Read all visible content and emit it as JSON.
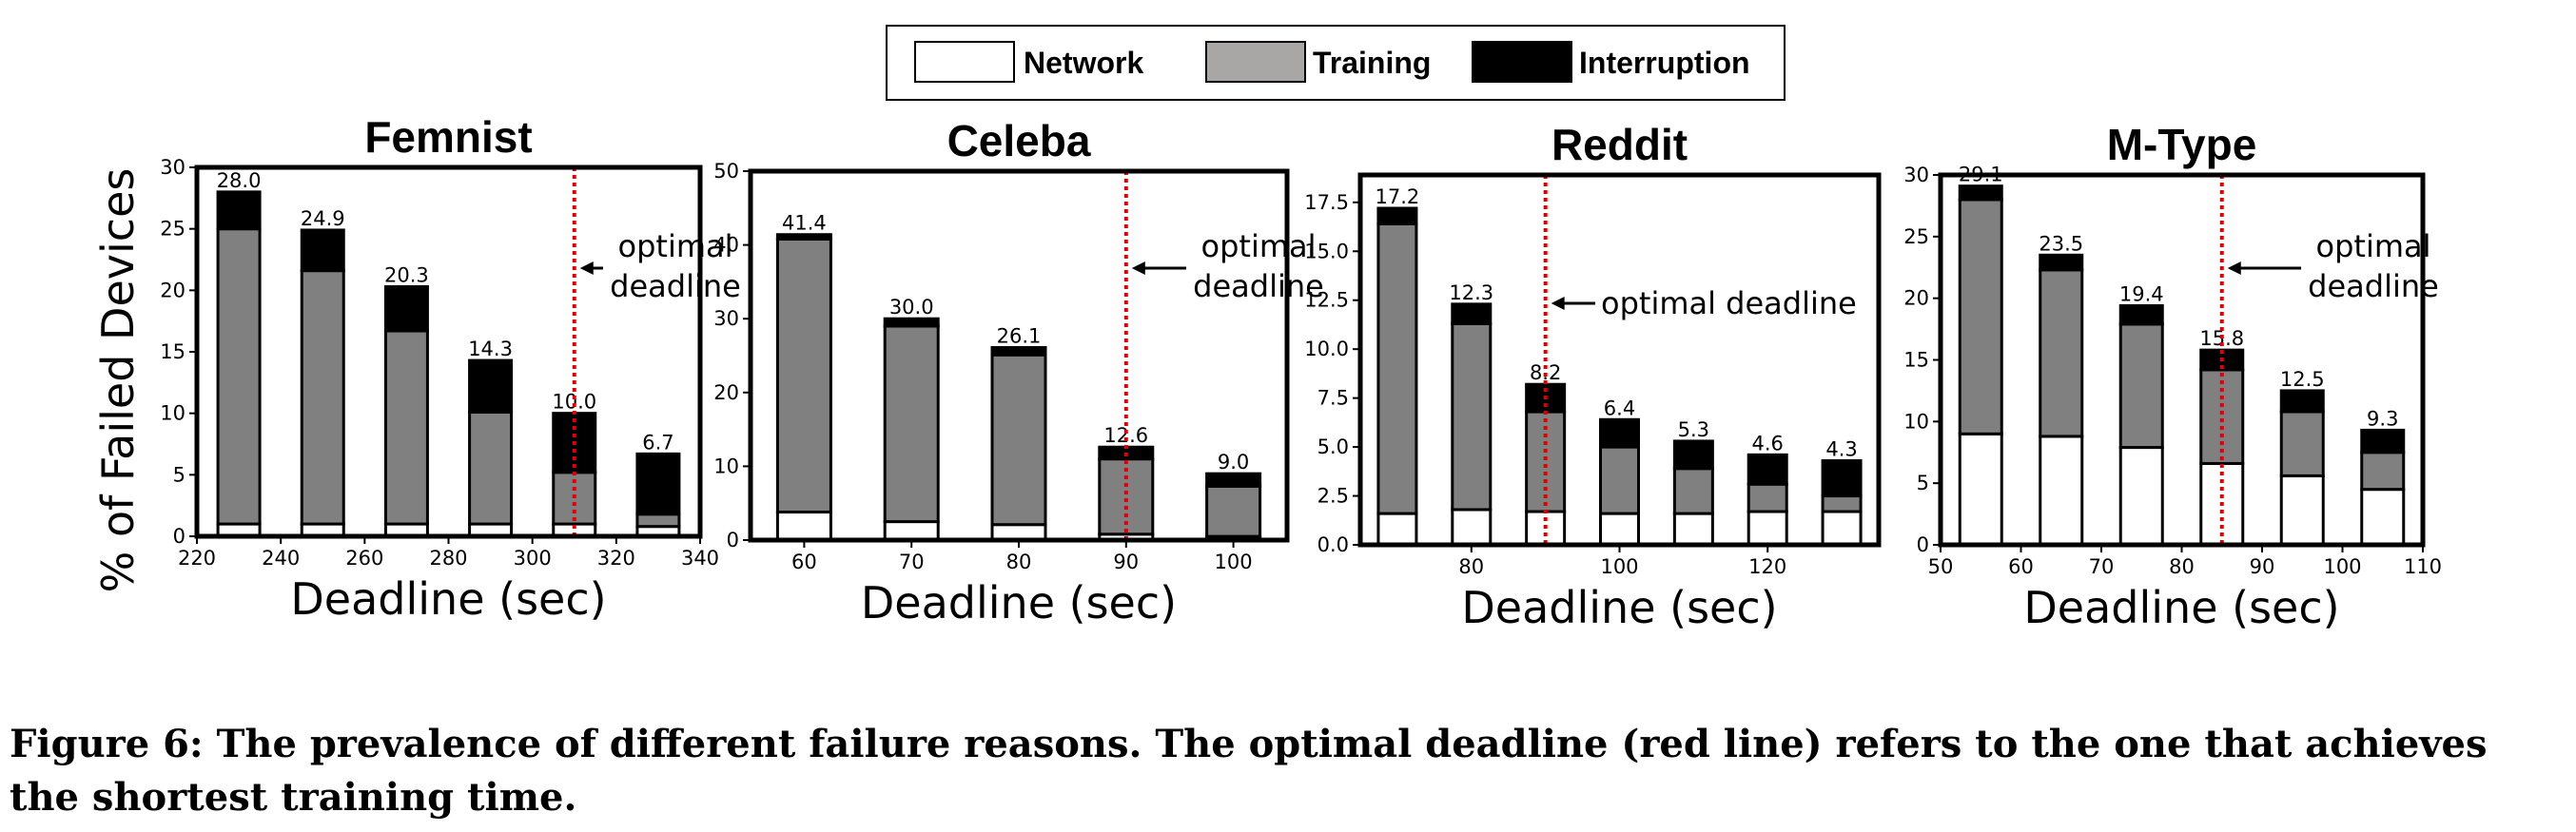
{
  "legend": {
    "items": [
      {
        "label": "Network",
        "color": "#ffffff"
      },
      {
        "label": "Training",
        "color": "#a9a6a6"
      },
      {
        "label": "Interruption",
        "color": "#000000"
      }
    ]
  },
  "shared": {
    "xlabel": "Deadline (sec)",
    "ylabel": "% of Failed Devices",
    "optimal_line_color": "#e00000",
    "training_bar_color": "#808080"
  },
  "chart_data": [
    {
      "type": "bar",
      "stacked": true,
      "title": "Femnist",
      "xlabel": "Deadline (sec)",
      "ylabel": "% of Failed Devices",
      "xlim": [
        220,
        340
      ],
      "xticks": [
        "220",
        "240",
        "260",
        "280",
        "300",
        "320",
        "340"
      ],
      "ylim": [
        0,
        30
      ],
      "yticks": [
        "0",
        "5",
        "10",
        "15",
        "20",
        "25",
        "30"
      ],
      "x": [
        230,
        250,
        270,
        290,
        310,
        330
      ],
      "totals_labels": [
        "28.0",
        "24.9",
        "20.3",
        "14.3",
        "10.0",
        "6.7"
      ],
      "series": [
        {
          "name": "Network",
          "values": [
            1.0,
            1.0,
            1.0,
            1.0,
            1.0,
            0.8
          ]
        },
        {
          "name": "Training",
          "values": [
            24.0,
            20.6,
            15.7,
            9.1,
            4.2,
            1.0
          ]
        },
        {
          "name": "Interruption",
          "values": [
            3.0,
            3.3,
            3.6,
            4.2,
            4.8,
            4.9
          ]
        }
      ],
      "optimal_deadline": 310,
      "annotation": "optimal\ndeadline",
      "annotation_position": "right"
    },
    {
      "type": "bar",
      "stacked": true,
      "title": "Celeba",
      "xlabel": "Deadline (sec)",
      "xlim": [
        55,
        105
      ],
      "xticks": [
        "60",
        "70",
        "80",
        "90",
        "100"
      ],
      "ylim": [
        0,
        50
      ],
      "yticks": [
        "0",
        "10",
        "20",
        "30",
        "40",
        "50"
      ],
      "x": [
        60,
        70,
        80,
        90,
        100
      ],
      "totals_labels": [
        "41.4",
        "30.0",
        "26.1",
        "12.6",
        "9.0"
      ],
      "series": [
        {
          "name": "Network",
          "values": [
            3.8,
            2.5,
            2.1,
            0.8,
            0.5
          ]
        },
        {
          "name": "Training",
          "values": [
            37.0,
            26.5,
            23.0,
            10.2,
            6.8
          ]
        },
        {
          "name": "Interruption",
          "values": [
            0.6,
            1.0,
            1.0,
            1.6,
            1.7
          ]
        }
      ],
      "optimal_deadline": 90,
      "annotation": "optimal\ndeadline",
      "annotation_position": "right"
    },
    {
      "type": "bar",
      "stacked": true,
      "title": "Reddit",
      "xlabel": "Deadline (sec)",
      "xlim": [
        65,
        135
      ],
      "xticks": [
        "80",
        "100",
        "120"
      ],
      "ylim": [
        0,
        18.9
      ],
      "yticks": [
        "0.0",
        "2.5",
        "5.0",
        "7.5",
        "10.0",
        "12.5",
        "15.0",
        "17.5"
      ],
      "x": [
        70,
        80,
        90,
        100,
        110,
        120,
        130
      ],
      "totals_labels": [
        "17.2",
        "12.3",
        "8.2",
        "6.4",
        "5.3",
        "4.6",
        "4.3"
      ],
      "series": [
        {
          "name": "Network",
          "values": [
            1.6,
            1.8,
            1.7,
            1.6,
            1.6,
            1.7,
            1.7
          ]
        },
        {
          "name": "Training",
          "values": [
            14.8,
            9.5,
            5.1,
            3.4,
            2.3,
            1.4,
            0.8
          ]
        },
        {
          "name": "Interruption",
          "values": [
            0.8,
            1.0,
            1.4,
            1.4,
            1.4,
            1.5,
            1.8
          ]
        }
      ],
      "optimal_deadline": 90,
      "annotation": "optimal deadline",
      "annotation_position": "right"
    },
    {
      "type": "bar",
      "stacked": true,
      "title": "M-Type",
      "xlabel": "Deadline (sec)",
      "xlim": [
        50,
        110
      ],
      "xticks": [
        "50",
        "60",
        "70",
        "80",
        "90",
        "100",
        "110"
      ],
      "ylim": [
        0,
        30
      ],
      "yticks": [
        "0",
        "5",
        "10",
        "15",
        "20",
        "25",
        "30"
      ],
      "x": [
        55,
        65,
        75,
        85,
        95,
        105
      ],
      "totals_labels": [
        "29.1",
        "23.5",
        "19.4",
        "15.8",
        "12.5",
        "9.3"
      ],
      "series": [
        {
          "name": "Network",
          "values": [
            9.0,
            8.8,
            7.9,
            6.6,
            5.6,
            4.5
          ]
        },
        {
          "name": "Training",
          "values": [
            19.0,
            13.5,
            10.0,
            7.6,
            5.2,
            3.0
          ]
        },
        {
          "name": "Interruption",
          "values": [
            1.1,
            1.2,
            1.5,
            1.6,
            1.7,
            1.8
          ]
        }
      ],
      "optimal_deadline": 85,
      "annotation": "optimal\ndeadline",
      "annotation_position": "right"
    }
  ],
  "caption": "Figure 6: The prevalence of different failure reasons. The optimal deadline (red line) refers to the one that achieves the shortest training time."
}
